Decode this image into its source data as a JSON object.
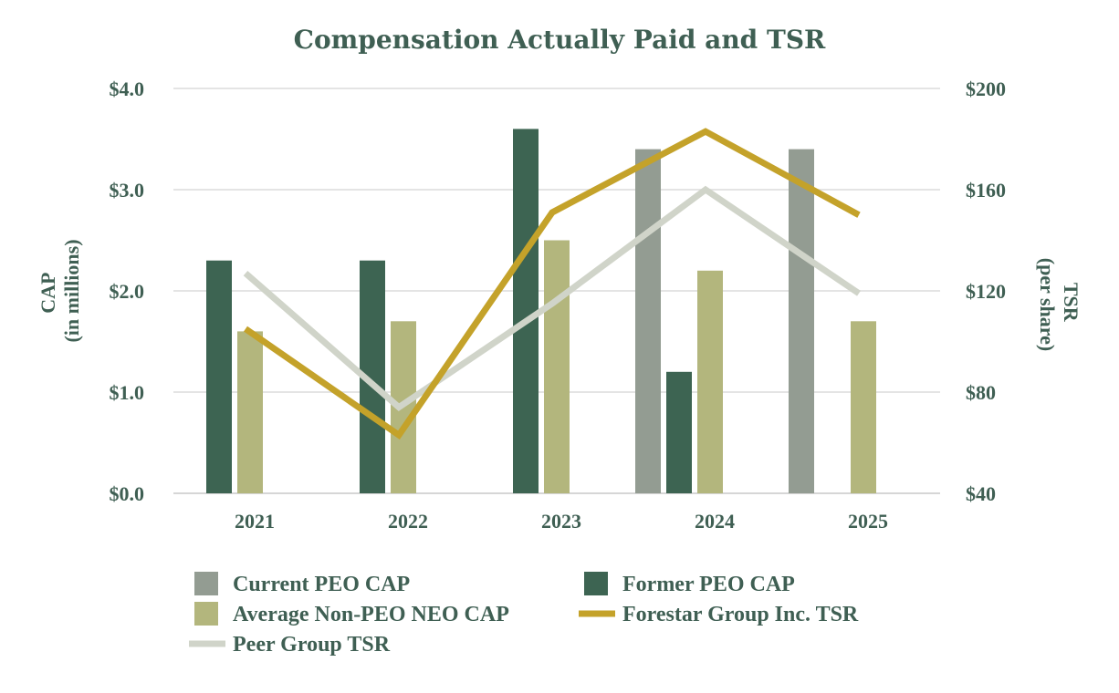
{
  "colors": {
    "text": "#3f5f53",
    "grid": "#e4e4e4",
    "current_peo": "#939c92",
    "former_peo": "#3d6452",
    "non_peo": "#b3b67d",
    "forestar_tsr": "#c4a22a",
    "peer_tsr": "#d0d4c9"
  },
  "chart_data": {
    "type": "bar",
    "title": "Compensation Actually Paid and TSR",
    "categories": [
      "2021",
      "2022",
      "2023",
      "2024",
      "2025"
    ],
    "y_left": {
      "label_line1": "CAP",
      "label_line2": "(in millions)",
      "range": [
        0,
        4
      ],
      "ticks": [
        0,
        1,
        2,
        3,
        4
      ],
      "tick_labels": [
        "$0.0",
        "$1.0",
        "$2.0",
        "$3.0",
        "$4.0"
      ]
    },
    "y_right": {
      "label_line1": "TSR",
      "label_line2": "(per share)",
      "range": [
        40,
        200
      ],
      "ticks": [
        40,
        80,
        120,
        160,
        200
      ],
      "tick_labels": [
        "$40",
        "$80",
        "$120",
        "$160",
        "$200"
      ]
    },
    "grid": true,
    "bar_series": [
      {
        "name": "Current PEO CAP",
        "color_key": "current_peo",
        "values": [
          null,
          null,
          null,
          3.4,
          3.4
        ]
      },
      {
        "name": "Former PEO CAP",
        "color_key": "former_peo",
        "values": [
          2.3,
          2.3,
          3.6,
          1.2,
          null
        ]
      },
      {
        "name": "Average Non-PEO NEO CAP",
        "color_key": "non_peo",
        "values": [
          1.6,
          1.7,
          2.5,
          2.2,
          1.7
        ]
      }
    ],
    "line_series": [
      {
        "name": "Forestar Group Inc. TSR",
        "color_key": "forestar_tsr",
        "axis": "right",
        "values": [
          105,
          63,
          151,
          183,
          150
        ]
      },
      {
        "name": "Peer Group TSR",
        "color_key": "peer_tsr",
        "axis": "right",
        "values": [
          127,
          74,
          115,
          160,
          119
        ]
      }
    ],
    "legend": {
      "placement": "bottom",
      "items": [
        {
          "label": "Current PEO CAP",
          "kind": "box",
          "color_key": "current_peo"
        },
        {
          "label": "Former PEO CAP",
          "kind": "box",
          "color_key": "former_peo"
        },
        {
          "label": "Average Non-PEO NEO CAP",
          "kind": "box",
          "color_key": "non_peo"
        },
        {
          "label": "Forestar Group Inc. TSR",
          "kind": "line",
          "color_key": "forestar_tsr"
        },
        {
          "label": "Peer Group TSR",
          "kind": "line",
          "color_key": "peer_tsr"
        }
      ]
    }
  }
}
